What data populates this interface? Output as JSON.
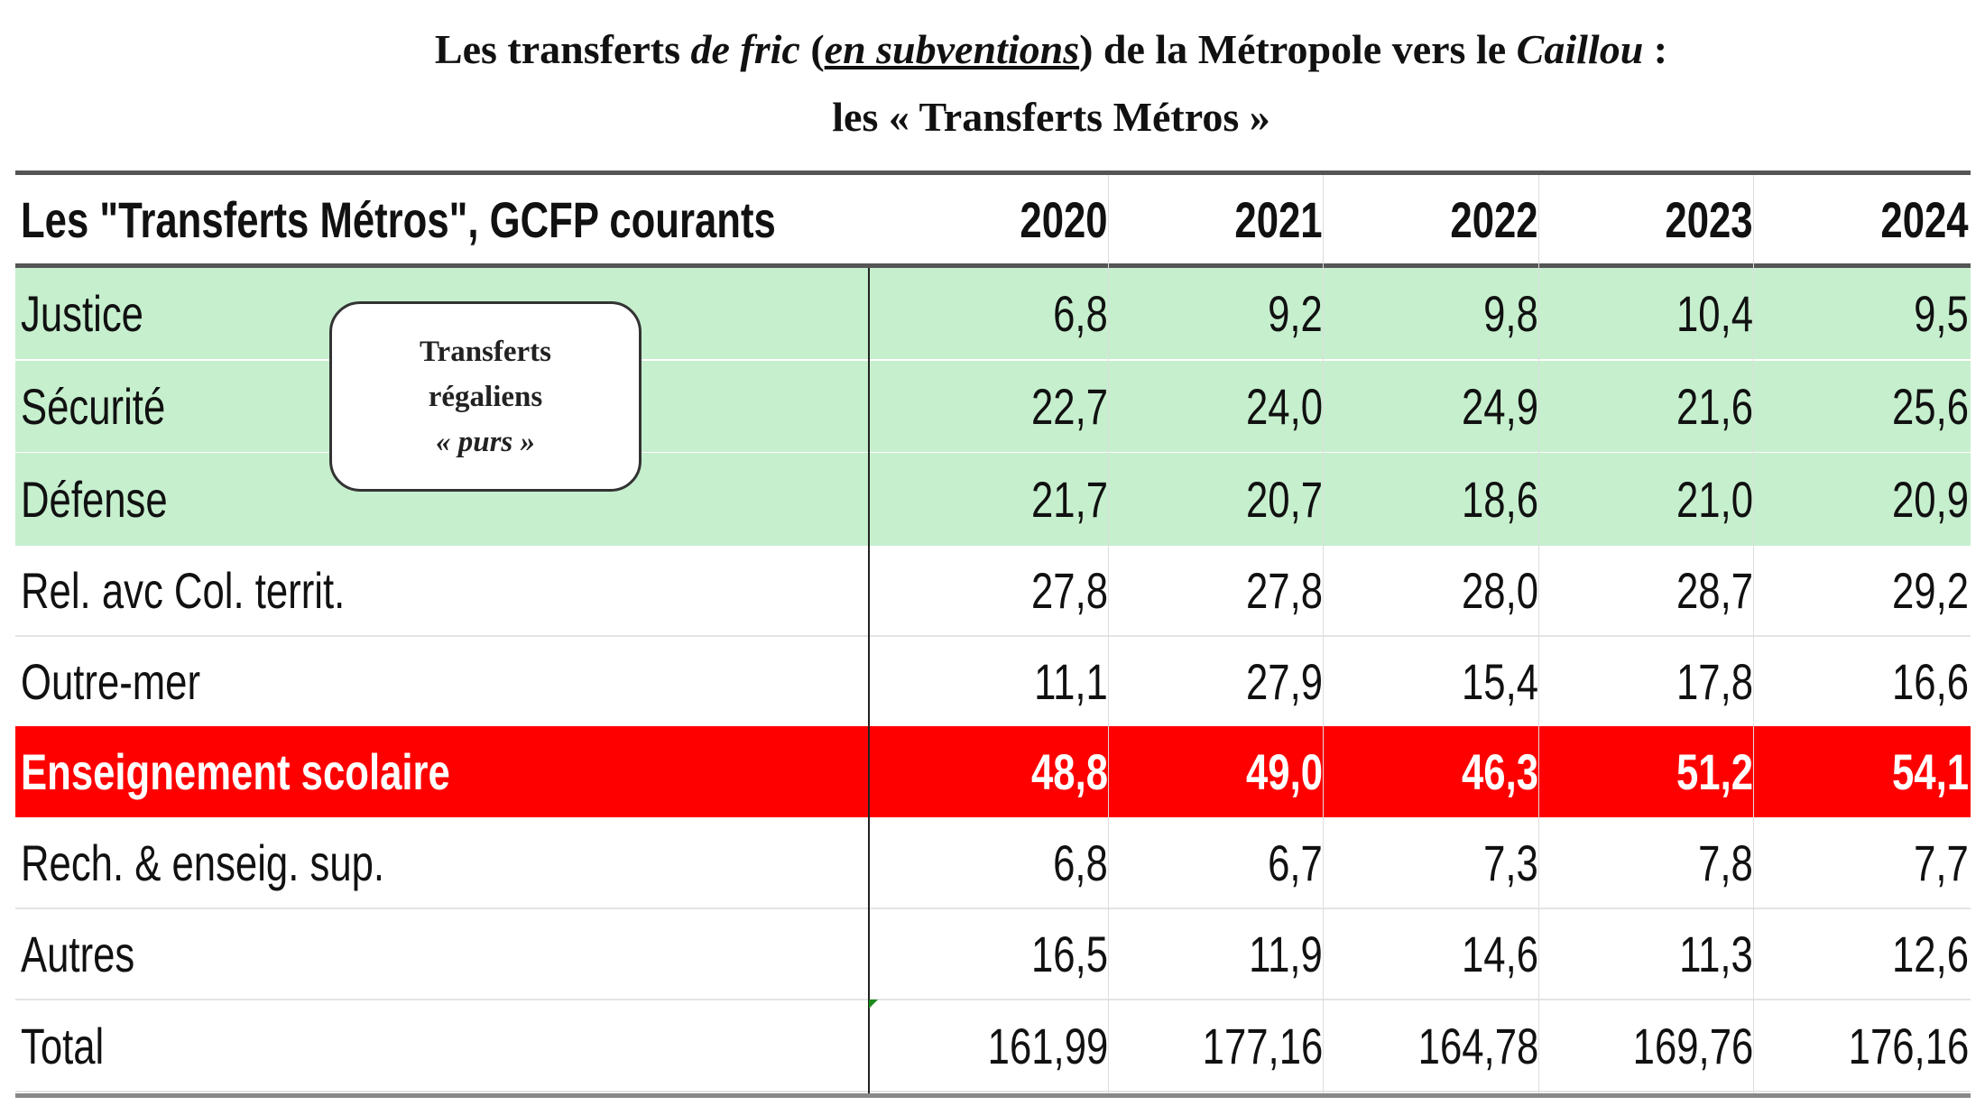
{
  "title": {
    "line1": {
      "p1": "Les ",
      "p2": "transferts",
      "p3": " de fric",
      "p4": " (",
      "p5": "en subventions",
      "p6": ") de la Métropole vers le ",
      "p7": "Caillou",
      "p8": " :"
    },
    "line2": "les « Transferts Métros »"
  },
  "annotation": {
    "line1": "Transferts",
    "line2": "régaliens",
    "line3": "« purs »"
  },
  "colors": {
    "regalien_highlight": "#c6efce",
    "enseignement_highlight": "#ff0000"
  },
  "chart_data": {
    "type": "table",
    "title": "Les \"Transferts Métros\", GCFP courants",
    "header": "Les \"Transferts Métros\", GCFP courants",
    "years": [
      "2020",
      "2021",
      "2022",
      "2023",
      "2024"
    ],
    "rows": [
      {
        "label": "Justice",
        "values": [
          "6,8",
          "9,2",
          "9,8",
          "10,4",
          "9,5"
        ]
      },
      {
        "label": "Sécurité",
        "values": [
          "22,7",
          "24,0",
          "24,9",
          "21,6",
          "25,6"
        ]
      },
      {
        "label": "Défense",
        "values": [
          "21,7",
          "20,7",
          "18,6",
          "21,0",
          "20,9"
        ]
      },
      {
        "label": "Rel. avc Col. territ.",
        "values": [
          "27,8",
          "27,8",
          "28,0",
          "28,7",
          "29,2"
        ]
      },
      {
        "label": "Outre-mer",
        "values": [
          "11,1",
          "27,9",
          "15,4",
          "17,8",
          "16,6"
        ]
      },
      {
        "label": "Enseignement scolaire",
        "values": [
          "48,8",
          "49,0",
          "46,3",
          "51,2",
          "54,1"
        ]
      },
      {
        "label": "Rech. & enseig. sup.",
        "values": [
          "6,8",
          "6,7",
          "7,3",
          "7,8",
          "7,7"
        ]
      },
      {
        "label": "Autres",
        "values": [
          "16,5",
          "11,9",
          "14,6",
          "11,3",
          "12,6"
        ]
      },
      {
        "label": "Total",
        "values": [
          "161,99",
          "177,16",
          "164,78",
          "169,76",
          "176,16"
        ]
      }
    ]
  }
}
